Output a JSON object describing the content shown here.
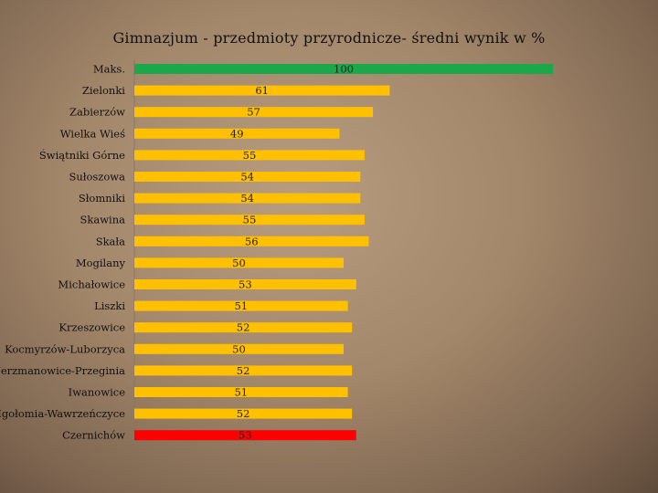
{
  "chart_data": {
    "type": "bar",
    "orientation": "horizontal",
    "title": "Gimnazjum - przedmioty przyrodnicze- średni wynik w %",
    "xlabel": "",
    "ylabel": "",
    "xlim": [
      0,
      100
    ],
    "grid": false,
    "legend": "none",
    "categories": [
      "Maks.",
      "Zielonki",
      "Zabierzów",
      "Wielka Wieś",
      "Świątniki Górne",
      "Sułoszowa",
      "Słomniki",
      "Skawina",
      "Skała",
      "Mogilany",
      "Michałowice",
      "Liszki",
      "Krzeszowice",
      "Kocmyrzów-Luborzyca",
      "Jerzmanowice-Przeginia",
      "Iwanowice",
      "Igołomia-Wawrzeńczyce",
      "Czernichów"
    ],
    "values": [
      100,
      61,
      57,
      49,
      55,
      54,
      54,
      55,
      56,
      50,
      53,
      51,
      52,
      50,
      52,
      51,
      52,
      53
    ],
    "colors": [
      "#1aa84a",
      "#ffc000",
      "#ffc000",
      "#ffc000",
      "#ffc000",
      "#ffc000",
      "#ffc000",
      "#ffc000",
      "#ffc000",
      "#ffc000",
      "#ffc000",
      "#ffc000",
      "#ffc000",
      "#ffc000",
      "#ffc000",
      "#ffc000",
      "#ffc000",
      "#ff0000"
    ]
  }
}
